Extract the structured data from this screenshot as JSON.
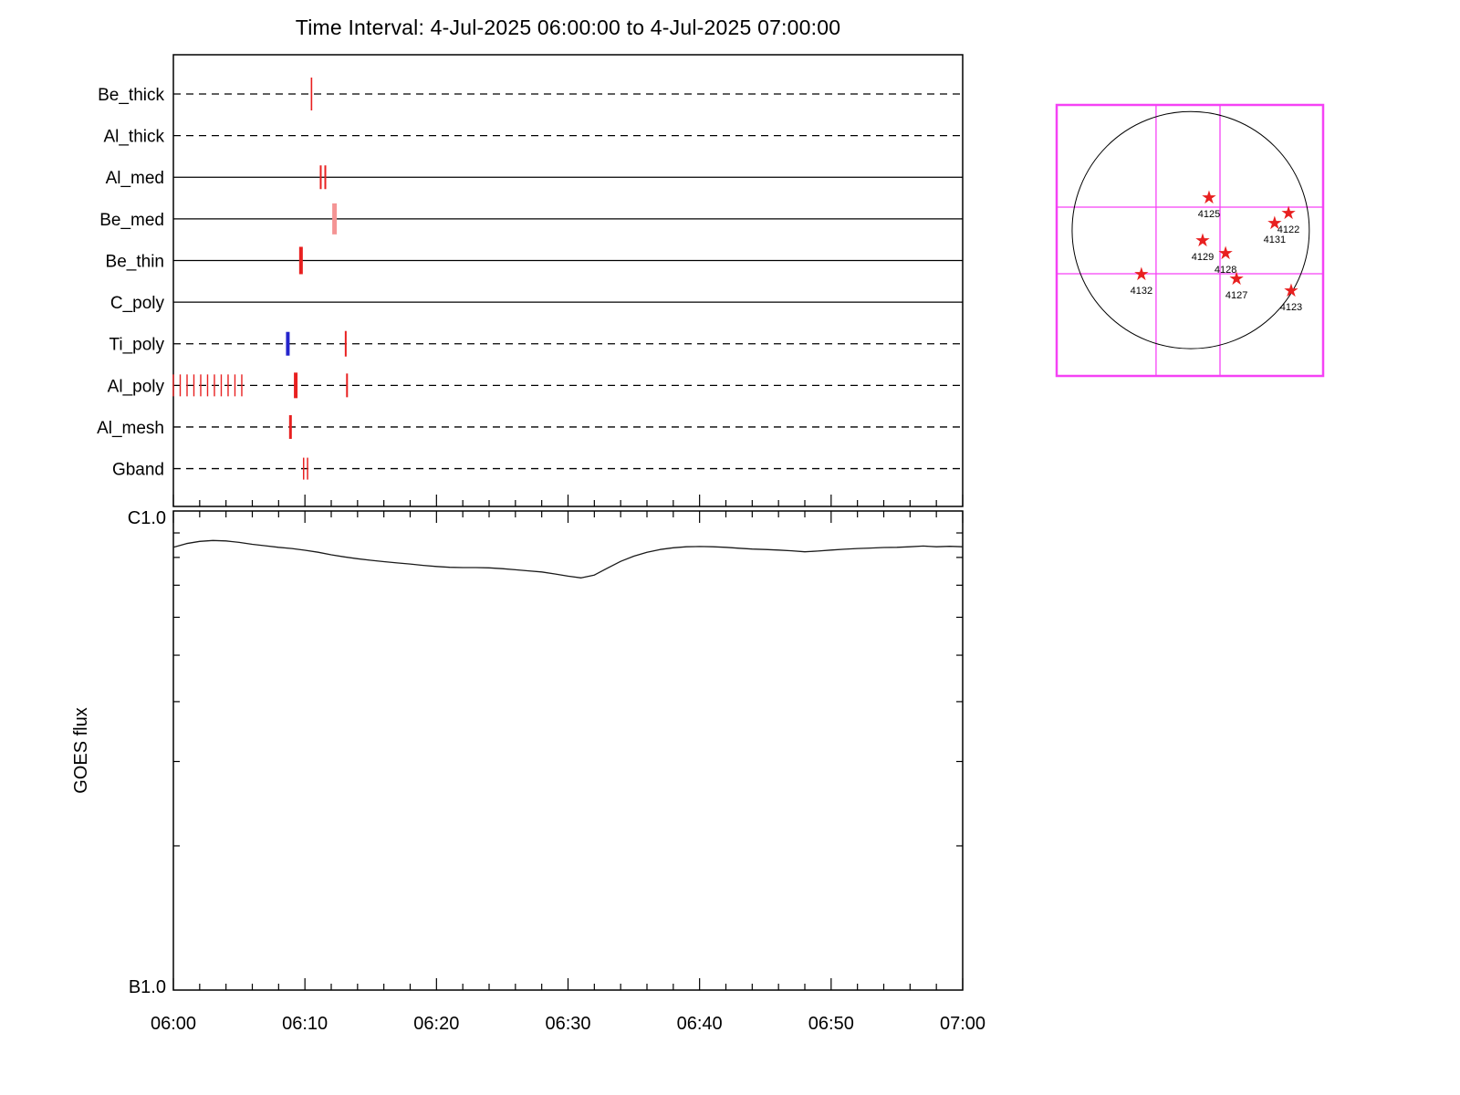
{
  "title": "Time Interval:  4-Jul-2025 06:00:00 to  4-Jul-2025 07:00:00",
  "colors": {
    "axis": "#000000",
    "red_mark": "#e82020",
    "salmon_mark": "#f49494",
    "blue_mark": "#2525cc",
    "magenta_grid": "#f542f5",
    "goes_line": "#1a1a1a"
  },
  "chart_data": [
    {
      "type": "scatter",
      "name": "filter-exposure-timeline",
      "x_unit": "minutes after 06:00:00",
      "xlim": [
        0,
        60
      ],
      "x_major_ticks_min": [
        0,
        10,
        20,
        30,
        40,
        50,
        60
      ],
      "x_minor_step_min": 2,
      "rows": [
        {
          "label": "Be_thick",
          "line_style": "dashed",
          "marks": [
            {
              "t": 10.5,
              "color": "red",
              "w": 1.6,
              "half_h": 18
            }
          ]
        },
        {
          "label": "Al_thick",
          "line_style": "dashed",
          "marks": []
        },
        {
          "label": "Al_med",
          "line_style": "solid",
          "marks": [
            {
              "t": 11.2,
              "color": "red",
              "w": 2,
              "half_h": 13
            },
            {
              "t": 11.55,
              "color": "red",
              "w": 2,
              "half_h": 13
            }
          ]
        },
        {
          "label": "Be_med",
          "line_style": "solid",
          "marks": [
            {
              "t": 12.25,
              "color": "salmon",
              "w": 5,
              "half_h": 17
            }
          ]
        },
        {
          "label": "Be_thin",
          "line_style": "solid",
          "marks": [
            {
              "t": 9.7,
              "color": "red",
              "w": 4,
              "half_h": 15
            }
          ]
        },
        {
          "label": "C_poly",
          "line_style": "solid",
          "marks": []
        },
        {
          "label": "Ti_poly",
          "line_style": "dashed",
          "marks": [
            {
              "t": 8.7,
              "color": "blue",
              "w": 4,
              "half_h": 13
            },
            {
              "t": 13.1,
              "color": "red",
              "w": 2,
              "half_h": 14
            }
          ]
        },
        {
          "label": "Al_poly",
          "line_style": "dashed",
          "marks": [
            {
              "t": 0.0,
              "color": "red",
              "w": 1.4,
              "half_h": 12
            },
            {
              "t": 0.52,
              "color": "red",
              "w": 1.4,
              "half_h": 12
            },
            {
              "t": 1.04,
              "color": "red",
              "w": 1.4,
              "half_h": 12
            },
            {
              "t": 1.56,
              "color": "red",
              "w": 1.4,
              "half_h": 12
            },
            {
              "t": 2.08,
              "color": "red",
              "w": 1.4,
              "half_h": 12
            },
            {
              "t": 2.6,
              "color": "red",
              "w": 1.4,
              "half_h": 12
            },
            {
              "t": 3.12,
              "color": "red",
              "w": 1.4,
              "half_h": 12
            },
            {
              "t": 3.64,
              "color": "red",
              "w": 1.4,
              "half_h": 12
            },
            {
              "t": 4.16,
              "color": "red",
              "w": 1.4,
              "half_h": 12
            },
            {
              "t": 4.68,
              "color": "red",
              "w": 1.4,
              "half_h": 12
            },
            {
              "t": 5.2,
              "color": "red",
              "w": 1.4,
              "half_h": 12
            },
            {
              "t": 9.3,
              "color": "red",
              "w": 4,
              "half_h": 14
            },
            {
              "t": 13.2,
              "color": "red",
              "w": 2,
              "half_h": 13
            }
          ]
        },
        {
          "label": "Al_mesh",
          "line_style": "dashed",
          "marks": [
            {
              "t": 8.9,
              "color": "red",
              "w": 3,
              "half_h": 13
            }
          ]
        },
        {
          "label": "Gband",
          "line_style": "dashed",
          "marks": [
            {
              "t": 9.9,
              "color": "red",
              "w": 1.5,
              "half_h": 12
            },
            {
              "t": 10.2,
              "color": "red",
              "w": 1.5,
              "half_h": 12
            }
          ]
        }
      ]
    },
    {
      "type": "line",
      "name": "goes-flux",
      "ylabel": "GOES flux",
      "yscale": "log",
      "y_top_label": "C1.0",
      "y_bottom_label": "B1.0",
      "y_range_b_units": [
        1,
        10
      ],
      "x_unit": "minutes after 06:00:00",
      "x_tick_labels": [
        "06:00",
        "06:10",
        "06:20",
        "06:30",
        "06:40",
        "06:50",
        "07:00"
      ],
      "series": [
        {
          "name": "GOES flux",
          "x_min": [
            0,
            1,
            2,
            3,
            4,
            5,
            6,
            7,
            8,
            9,
            10,
            11,
            12,
            13,
            14,
            15,
            16,
            17,
            18,
            19,
            20,
            21,
            22,
            23,
            24,
            25,
            26,
            27,
            28,
            29,
            30,
            31,
            32,
            33,
            34,
            35,
            36,
            37,
            38,
            39,
            40,
            41,
            42,
            43,
            44,
            45,
            46,
            47,
            48,
            49,
            50,
            51,
            52,
            53,
            54,
            55,
            56,
            57,
            58,
            59,
            60
          ],
          "y_b_units": [
            8.4,
            8.55,
            8.64,
            8.68,
            8.66,
            8.6,
            8.52,
            8.46,
            8.4,
            8.35,
            8.28,
            8.2,
            8.1,
            8.02,
            7.95,
            7.89,
            7.84,
            7.79,
            7.75,
            7.7,
            7.66,
            7.63,
            7.62,
            7.62,
            7.61,
            7.58,
            7.54,
            7.5,
            7.46,
            7.39,
            7.31,
            7.25,
            7.35,
            7.6,
            7.85,
            8.05,
            8.2,
            8.31,
            8.38,
            8.42,
            8.43,
            8.42,
            8.4,
            8.36,
            8.33,
            8.31,
            8.29,
            8.26,
            8.22,
            8.25,
            8.29,
            8.32,
            8.35,
            8.37,
            8.39,
            8.4,
            8.42,
            8.45,
            8.42,
            8.44,
            8.42
          ]
        }
      ]
    },
    {
      "type": "scatter",
      "name": "solar-disk-map",
      "description": "Full-disk solar map with flagged NOAA active regions",
      "grid": {
        "v_fracs": [
          0.373,
          0.613
        ],
        "h_fracs": [
          0.377,
          0.623
        ]
      },
      "disk": {
        "cx_frac": 0.503,
        "cy_frac": 0.462,
        "r_frac": 0.445
      },
      "regions": [
        {
          "label": "4125",
          "fx": 0.572,
          "fy": 0.34
        },
        {
          "label": "4122",
          "fx": 0.87,
          "fy": 0.397
        },
        {
          "label": "4131",
          "fx": 0.818,
          "fy": 0.434
        },
        {
          "label": "4129",
          "fx": 0.548,
          "fy": 0.498
        },
        {
          "label": "4128",
          "fx": 0.634,
          "fy": 0.545
        },
        {
          "label": "4132",
          "fx": 0.318,
          "fy": 0.623
        },
        {
          "label": "4127",
          "fx": 0.675,
          "fy": 0.64
        },
        {
          "label": "4123",
          "fx": 0.88,
          "fy": 0.683
        }
      ]
    }
  ]
}
